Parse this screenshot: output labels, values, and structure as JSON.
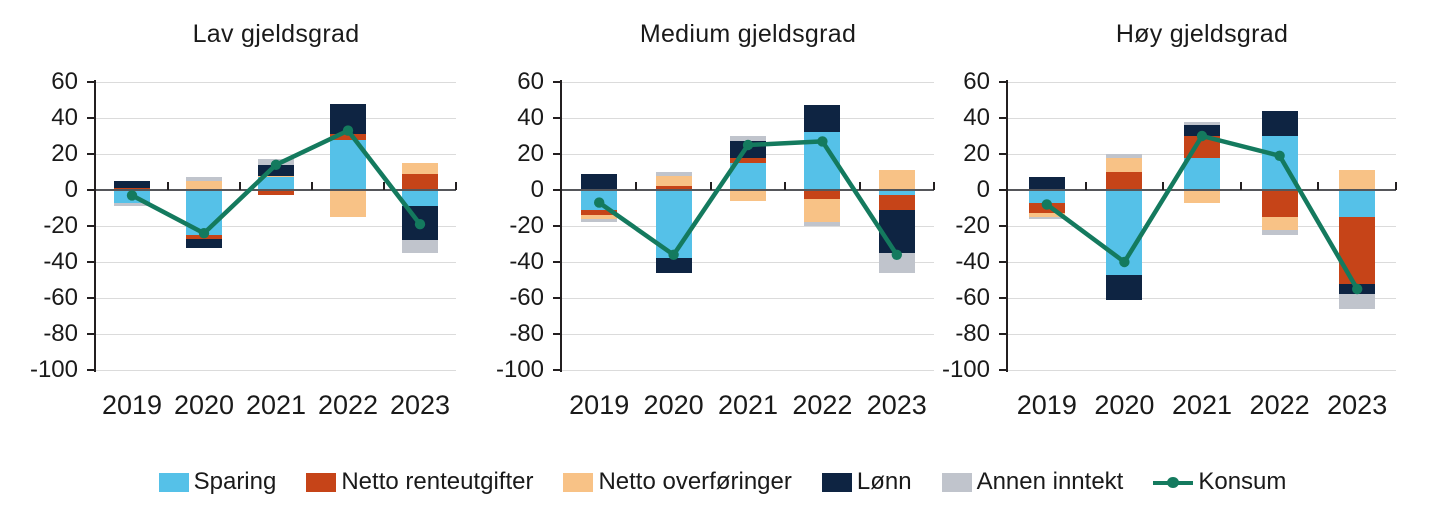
{
  "legend": {
    "items": [
      {
        "label": "Sparing",
        "color": "#55C1E8",
        "marker": "swatch"
      },
      {
        "label": "Netto renteutgifter",
        "color": "#C64418",
        "marker": "swatch"
      },
      {
        "label": "Netto overføringer",
        "color": "#F8C286",
        "marker": "swatch"
      },
      {
        "label": "Lønn",
        "color": "#0E2442",
        "marker": "swatch"
      },
      {
        "label": "Annen inntekt",
        "color": "#C0C4CC",
        "marker": "swatch"
      },
      {
        "label": "Konsum",
        "color": "#147A5E",
        "marker": "line"
      }
    ]
  },
  "axis": {
    "y_ticks": [
      60,
      40,
      20,
      0,
      -20,
      -40,
      -60,
      -80,
      -100
    ],
    "y_min": -100,
    "y_max": 60,
    "categories": [
      "2019",
      "2020",
      "2021",
      "2022",
      "2023"
    ]
  },
  "chart_data": [
    {
      "type": "stacked-bar+line",
      "title": "Lav gjeldsgrad",
      "categories": [
        "2019",
        "2020",
        "2021",
        "2022",
        "2023"
      ],
      "series": [
        {
          "name": "Sparing",
          "values": [
            -7,
            -25,
            7,
            28,
            -9
          ]
        },
        {
          "name": "Netto renteutgifter",
          "values": [
            1,
            -2,
            -3,
            3,
            9
          ]
        },
        {
          "name": "Netto overføringer",
          "values": [
            0,
            5,
            1,
            -15,
            6
          ]
        },
        {
          "name": "Lønn",
          "values": [
            4,
            -5,
            6,
            17,
            -19
          ]
        },
        {
          "name": "Annen inntekt",
          "values": [
            -2,
            2,
            3,
            0,
            -7
          ]
        }
      ],
      "line": {
        "name": "Konsum",
        "values": [
          -3,
          -24,
          14,
          33,
          -19
        ]
      }
    },
    {
      "type": "stacked-bar+line",
      "title": "Medium gjeldsgrad",
      "categories": [
        "2019",
        "2020",
        "2021",
        "2022",
        "2023"
      ],
      "series": [
        {
          "name": "Sparing",
          "values": [
            -11,
            -38,
            15,
            32,
            -3
          ]
        },
        {
          "name": "Netto renteutgifter",
          "values": [
            -3,
            2,
            3,
            -5,
            -8
          ]
        },
        {
          "name": "Netto overføringer",
          "values": [
            -2,
            6,
            -6,
            -13,
            11
          ]
        },
        {
          "name": "Lønn",
          "values": [
            9,
            -8,
            9,
            15,
            -24
          ]
        },
        {
          "name": "Annen inntekt",
          "values": [
            -2,
            2,
            3,
            -2,
            -11
          ]
        }
      ],
      "line": {
        "name": "Konsum",
        "values": [
          -7,
          -36,
          25,
          27,
          -36
        ]
      }
    },
    {
      "type": "stacked-bar+line",
      "title": "Høy gjeldsgrad",
      "categories": [
        "2019",
        "2020",
        "2021",
        "2022",
        "2023"
      ],
      "series": [
        {
          "name": "Sparing",
          "values": [
            -7,
            -47,
            18,
            30,
            -15
          ]
        },
        {
          "name": "Netto renteutgifter",
          "values": [
            -6,
            10,
            12,
            -15,
            -37
          ]
        },
        {
          "name": "Netto overføringer",
          "values": [
            -2,
            8,
            -7,
            -7,
            11
          ]
        },
        {
          "name": "Lønn",
          "values": [
            7,
            -14,
            6,
            14,
            -6
          ]
        },
        {
          "name": "Annen inntekt",
          "values": [
            -1,
            2,
            2,
            -3,
            -8
          ]
        }
      ],
      "line": {
        "name": "Konsum",
        "values": [
          -8,
          -40,
          30,
          19,
          -55
        ]
      }
    }
  ]
}
